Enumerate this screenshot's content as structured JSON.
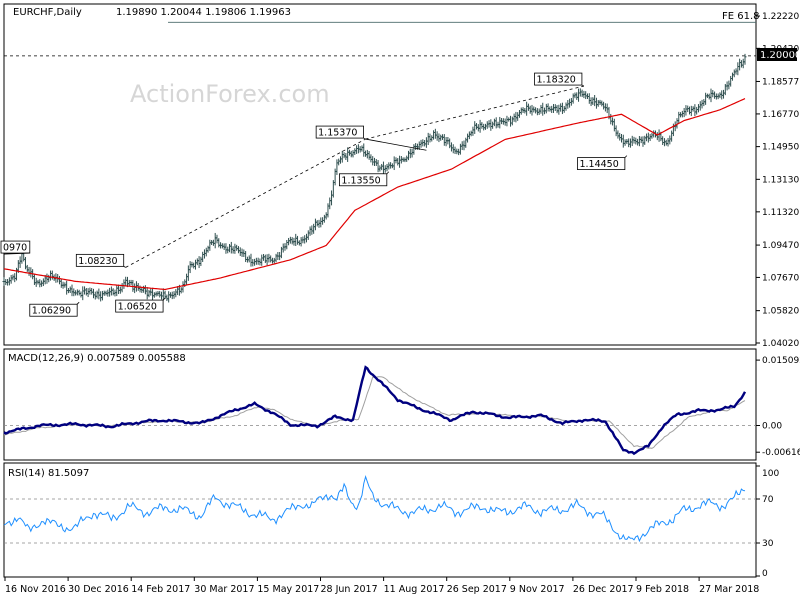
{
  "header": {
    "symbol": "EURCHF,Daily",
    "ohlc": "1.19890 1.20044 1.19806 1.19963"
  },
  "watermark": "ActionForex.com",
  "colors": {
    "price": "#2f4f4f",
    "ma": "#e00000",
    "macd": "#00007f",
    "signal": "#a0a0a0",
    "rsi": "#1e8fff",
    "levels": "#000000",
    "watermark": "#d6d6d6"
  },
  "chart_data": [
    {
      "type": "ohlc",
      "title": "EURCHF,Daily",
      "ylim": [
        1.0402,
        1.2222
      ],
      "y_ticks": [
        "1.22220",
        "1.20420",
        "1.18577",
        "1.16770",
        "1.14950",
        "1.13130",
        "1.11320",
        "1.09470",
        "1.07670",
        "1.05820",
        "1.04020"
      ],
      "x_ticks": [
        "16 Nov 2016",
        "30 Dec 2016",
        "14 Feb 2017",
        "30 Mar 2017",
        "15 May 2017",
        "28 Jun 2017",
        "11 Aug 2017",
        "26 Sep 2017",
        "9 Nov 2017",
        "26 Dec 2017",
        "9 Feb 2018",
        "27 Mar 2018"
      ],
      "current_price_label": "1.20000",
      "fib_label": "FE 61.8",
      "fib_level": 1.2187,
      "annotations": [
        {
          "label": "0970",
          "price": 1.0897,
          "date_idx": 0
        },
        {
          "label": "1.06290",
          "price": 1.0629,
          "date_idx": 42
        },
        {
          "label": "1.08230",
          "price": 1.0823,
          "date_idx": 68
        },
        {
          "label": "1.06520",
          "price": 1.0652,
          "date_idx": 90
        },
        {
          "label": "1.15370",
          "price": 1.1537,
          "date_idx": 202
        },
        {
          "label": "1.13550",
          "price": 1.1355,
          "date_idx": 215
        },
        {
          "label": "1.18320",
          "price": 1.1832,
          "date_idx": 324
        },
        {
          "label": "1.14450",
          "price": 1.1445,
          "date_idx": 348
        }
      ],
      "series": [
        {
          "name": "price",
          "type": "ohlc",
          "anchors": [
            [
              0,
              1.072
            ],
            [
              6,
              1.079
            ],
            [
              10,
              1.09
            ],
            [
              12,
              1.081
            ],
            [
              18,
              1.074
            ],
            [
              25,
              1.077
            ],
            [
              35,
              1.072
            ],
            [
              42,
              1.066
            ],
            [
              48,
              1.07
            ],
            [
              55,
              1.066
            ],
            [
              60,
              1.068
            ],
            [
              65,
              1.072
            ],
            [
              68,
              1.075
            ],
            [
              72,
              1.07
            ],
            [
              78,
              1.071
            ],
            [
              85,
              1.066
            ],
            [
              90,
              1.066
            ],
            [
              95,
              1.069
            ],
            [
              100,
              1.07
            ],
            [
              104,
              1.083
            ],
            [
              110,
              1.088
            ],
            [
              118,
              1.097
            ],
            [
              126,
              1.093
            ],
            [
              134,
              1.089
            ],
            [
              142,
              1.085
            ],
            [
              150,
              1.087
            ],
            [
              158,
              1.095
            ],
            [
              166,
              1.098
            ],
            [
              172,
              1.103
            ],
            [
              178,
              1.108
            ],
            [
              182,
              1.12
            ],
            [
              186,
              1.14
            ],
            [
              192,
              1.145
            ],
            [
              198,
              1.15
            ],
            [
              204,
              1.142
            ],
            [
              210,
              1.139
            ],
            [
              216,
              1.138
            ],
            [
              222,
              1.142
            ],
            [
              228,
              1.148
            ],
            [
              234,
              1.15
            ],
            [
              240,
              1.158
            ],
            [
              246,
              1.152
            ],
            [
              252,
              1.147
            ],
            [
              258,
              1.153
            ],
            [
              264,
              1.16
            ],
            [
              270,
              1.163
            ],
            [
              276,
              1.161
            ],
            [
              282,
              1.165
            ],
            [
              288,
              1.168
            ],
            [
              294,
              1.17
            ],
            [
              300,
              1.171
            ],
            [
              306,
              1.169
            ],
            [
              312,
              1.172
            ],
            [
              318,
              1.176
            ],
            [
              324,
              1.179
            ],
            [
              330,
              1.175
            ],
            [
              336,
              1.17
            ],
            [
              340,
              1.163
            ],
            [
              344,
              1.155
            ],
            [
              348,
              1.15
            ],
            [
              352,
              1.152
            ],
            [
              358,
              1.155
            ],
            [
              364,
              1.155
            ],
            [
              370,
              1.152
            ],
            [
              376,
              1.164
            ],
            [
              382,
              1.17
            ],
            [
              388,
              1.172
            ],
            [
              394,
              1.177
            ],
            [
              400,
              1.179
            ],
            [
              406,
              1.186
            ],
            [
              410,
              1.193
            ],
            [
              414,
              1.1996
            ]
          ]
        },
        {
          "name": "MA",
          "type": "line",
          "anchors": [
            [
              0,
              1.0815
            ],
            [
              40,
              1.0745
            ],
            [
              90,
              1.07
            ],
            [
              120,
              1.0762
            ],
            [
              160,
              1.0865
            ],
            [
              180,
              1.0945
            ],
            [
              196,
              1.114
            ],
            [
              220,
              1.127
            ],
            [
              250,
              1.137
            ],
            [
              280,
              1.1535
            ],
            [
              320,
              1.1625
            ],
            [
              345,
              1.1675
            ],
            [
              365,
              1.156
            ],
            [
              380,
              1.164
            ],
            [
              400,
              1.17
            ],
            [
              414,
              1.1762
            ]
          ]
        }
      ]
    },
    {
      "type": "line",
      "title": "MACD(12,26,9) 0.007589 0.005588",
      "ylim": [
        -0.0075,
        0.0165
      ],
      "y_ticks": [
        "0.015092",
        "0.00",
        "-0.006163"
      ],
      "series": [
        {
          "name": "MACD",
          "anchors": [
            [
              0,
              -0.0016
            ],
            [
              20,
              0.0
            ],
            [
              40,
              0.0003
            ],
            [
              60,
              -0.0002
            ],
            [
              80,
              0.001
            ],
            [
              90,
              0.0012
            ],
            [
              110,
              0.0005
            ],
            [
              130,
              0.0037
            ],
            [
              140,
              0.0049
            ],
            [
              150,
              0.003
            ],
            [
              160,
              0.0002
            ],
            [
              175,
              -0.0001
            ],
            [
              185,
              0.002
            ],
            [
              195,
              0.0012
            ],
            [
              202,
              0.0135
            ],
            [
              208,
              0.011
            ],
            [
              220,
              0.006
            ],
            [
              230,
              0.0042
            ],
            [
              240,
              0.0028
            ],
            [
              250,
              0.0013
            ],
            [
              262,
              0.0032
            ],
            [
              272,
              0.0026
            ],
            [
              282,
              0.0018
            ],
            [
              300,
              0.0023
            ],
            [
              312,
              0.0005
            ],
            [
              324,
              0.0013
            ],
            [
              336,
              0.001
            ],
            [
              342,
              -0.003
            ],
            [
              346,
              -0.0058
            ],
            [
              352,
              -0.0062
            ],
            [
              360,
              -0.0048
            ],
            [
              368,
              -0.0002
            ],
            [
              376,
              0.0025
            ],
            [
              388,
              0.0034
            ],
            [
              400,
              0.0036
            ],
            [
              408,
              0.0045
            ],
            [
              414,
              0.0076
            ]
          ]
        },
        {
          "name": "Signal",
          "anchors": [
            [
              0,
              -0.0022
            ],
            [
              20,
              -0.0005
            ],
            [
              40,
              0.0002
            ],
            [
              60,
              -0.0001
            ],
            [
              80,
              0.0007
            ],
            [
              90,
              0.0011
            ],
            [
              110,
              0.0006
            ],
            [
              130,
              0.0024
            ],
            [
              142,
              0.0044
            ],
            [
              152,
              0.0034
            ],
            [
              162,
              0.0011
            ],
            [
              177,
              -0.0001
            ],
            [
              188,
              0.0013
            ],
            [
              198,
              0.0014
            ],
            [
              206,
              0.011
            ],
            [
              212,
              0.0112
            ],
            [
              224,
              0.0074
            ],
            [
              236,
              0.0047
            ],
            [
              248,
              0.0024
            ],
            [
              262,
              0.0027
            ],
            [
              274,
              0.0027
            ],
            [
              286,
              0.0021
            ],
            [
              302,
              0.0021
            ],
            [
              314,
              0.001
            ],
            [
              326,
              0.0011
            ],
            [
              338,
              0.001
            ],
            [
              346,
              -0.0022
            ],
            [
              352,
              -0.0048
            ],
            [
              362,
              -0.0052
            ],
            [
              372,
              -0.0018
            ],
            [
              382,
              0.0018
            ],
            [
              394,
              0.0032
            ],
            [
              404,
              0.0035
            ],
            [
              414,
              0.0056
            ]
          ]
        }
      ]
    },
    {
      "type": "line",
      "title": "RSI(14) 81.5097",
      "ylim": [
        0,
        100
      ],
      "y_ticks": [
        "100",
        "70",
        "30",
        "0"
      ],
      "levels": [
        70,
        30
      ],
      "series": [
        {
          "name": "RSI",
          "anchors": [
            [
              0,
              45
            ],
            [
              8,
              55
            ],
            [
              14,
              40
            ],
            [
              22,
              52
            ],
            [
              30,
              45
            ],
            [
              40,
              44
            ],
            [
              50,
              58
            ],
            [
              60,
              52
            ],
            [
              70,
              63
            ],
            [
              80,
              58
            ],
            [
              90,
              62
            ],
            [
              100,
              60
            ],
            [
              110,
              55
            ],
            [
              118,
              71
            ],
            [
              126,
              65
            ],
            [
              134,
              60
            ],
            [
              142,
              55
            ],
            [
              150,
              52
            ],
            [
              158,
              58
            ],
            [
              166,
              66
            ],
            [
              172,
              63
            ],
            [
              178,
              72
            ],
            [
              182,
              75
            ],
            [
              186,
              69
            ],
            [
              190,
              80
            ],
            [
              194,
              68
            ],
            [
              198,
              64
            ],
            [
              202,
              87
            ],
            [
              206,
              72
            ],
            [
              212,
              66
            ],
            [
              220,
              60
            ],
            [
              228,
              58
            ],
            [
              236,
              60
            ],
            [
              244,
              64
            ],
            [
              252,
              58
            ],
            [
              260,
              61
            ],
            [
              268,
              63
            ],
            [
              276,
              58
            ],
            [
              284,
              60
            ],
            [
              292,
              63
            ],
            [
              300,
              59
            ],
            [
              310,
              60
            ],
            [
              320,
              64
            ],
            [
              328,
              58
            ],
            [
              334,
              55
            ],
            [
              340,
              45
            ],
            [
              346,
              34
            ],
            [
              350,
              31
            ],
            [
              356,
              38
            ],
            [
              362,
              43
            ],
            [
              368,
              49
            ],
            [
              374,
              52
            ],
            [
              380,
              60
            ],
            [
              388,
              64
            ],
            [
              396,
              66
            ],
            [
              402,
              64
            ],
            [
              408,
              70
            ],
            [
              414,
              81
            ]
          ]
        }
      ]
    }
  ]
}
